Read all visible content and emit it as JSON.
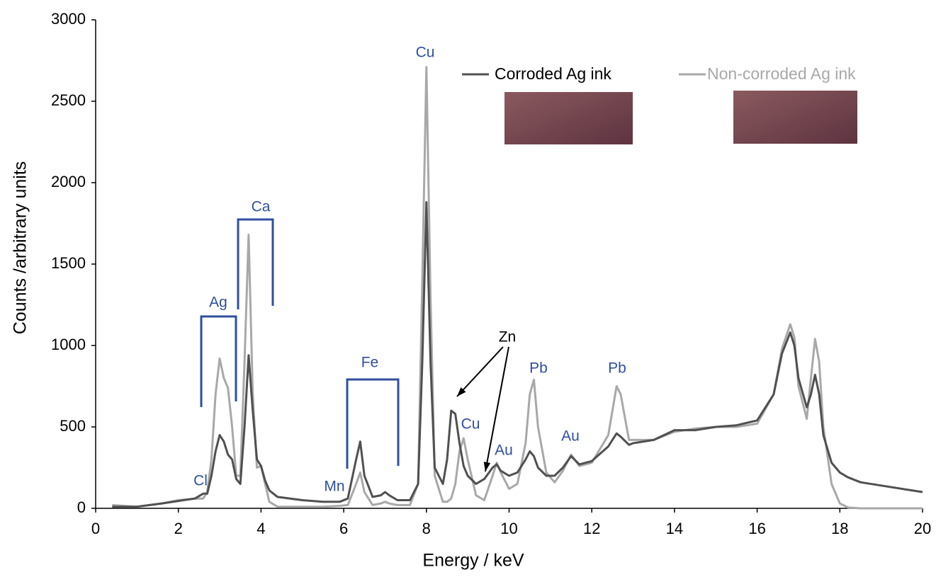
{
  "chart_data": {
    "type": "line",
    "x_label": "Energy / keV",
    "y_label": "Counts /arbitrary units",
    "xlim": [
      0,
      20
    ],
    "xticks": [
      0,
      2,
      4,
      6,
      8,
      10,
      12,
      14,
      16,
      18,
      20
    ],
    "ylim": [
      0,
      3000
    ],
    "yticks": [
      0,
      500,
      1000,
      1500,
      2000,
      2500,
      3000
    ],
    "x": [
      0.4,
      1.0,
      1.6,
      2.0,
      2.4,
      2.6,
      2.7,
      2.8,
      2.9,
      3.0,
      3.1,
      3.2,
      3.3,
      3.4,
      3.5,
      3.6,
      3.7,
      3.8,
      3.9,
      4.0,
      4.1,
      4.2,
      4.4,
      5.0,
      5.5,
      5.9,
      6.1,
      6.3,
      6.4,
      6.5,
      6.7,
      6.9,
      7.0,
      7.1,
      7.3,
      7.6,
      7.8,
      7.9,
      8.0,
      8.1,
      8.2,
      8.4,
      8.5,
      8.6,
      8.7,
      8.8,
      8.9,
      9.0,
      9.2,
      9.4,
      9.6,
      9.7,
      9.8,
      10.0,
      10.2,
      10.4,
      10.5,
      10.6,
      10.7,
      10.9,
      11.1,
      11.3,
      11.5,
      11.7,
      12.0,
      12.4,
      12.6,
      12.7,
      12.9,
      13.0,
      13.5,
      14.0,
      14.5,
      15.0,
      15.5,
      16.0,
      16.4,
      16.6,
      16.8,
      16.9,
      17.0,
      17.2,
      17.3,
      17.4,
      17.5,
      17.6,
      17.8,
      18.0,
      18.2,
      18.5,
      19.0,
      20.0
    ],
    "series": [
      {
        "name": "Corroded Ag ink",
        "color": "#505050",
        "values": [
          10,
          10,
          30,
          45,
          60,
          90,
          90,
          200,
          350,
          450,
          410,
          330,
          300,
          180,
          150,
          500,
          940,
          600,
          300,
          260,
          170,
          110,
          70,
          50,
          40,
          40,
          60,
          300,
          410,
          200,
          70,
          80,
          100,
          80,
          50,
          50,
          150,
          900,
          1880,
          900,
          250,
          150,
          300,
          600,
          580,
          400,
          260,
          200,
          150,
          180,
          250,
          270,
          230,
          200,
          220,
          300,
          350,
          320,
          250,
          200,
          200,
          250,
          320,
          270,
          290,
          380,
          460,
          440,
          390,
          400,
          420,
          480,
          480,
          500,
          510,
          540,
          700,
          950,
          1080,
          1000,
          800,
          620,
          700,
          820,
          700,
          450,
          280,
          220,
          190,
          160,
          140,
          100
        ]
      },
      {
        "name": "Non-corroded Ag ink",
        "color": "#a8a8a8",
        "values": [
          20,
          10,
          30,
          50,
          60,
          60,
          100,
          300,
          700,
          920,
          800,
          740,
          500,
          200,
          200,
          900,
          1680,
          700,
          250,
          260,
          150,
          40,
          10,
          10,
          10,
          15,
          20,
          150,
          220,
          100,
          20,
          30,
          40,
          30,
          20,
          20,
          150,
          1400,
          2710,
          1300,
          200,
          40,
          40,
          60,
          150,
          350,
          430,
          300,
          80,
          50,
          200,
          280,
          220,
          120,
          150,
          400,
          700,
          790,
          500,
          220,
          160,
          230,
          330,
          260,
          280,
          450,
          750,
          700,
          420,
          420,
          420,
          470,
          490,
          500,
          500,
          520,
          700,
          980,
          1130,
          1050,
          750,
          550,
          800,
          1040,
          900,
          500,
          150,
          30,
          5,
          0,
          0,
          0
        ]
      }
    ],
    "annotations": [
      "Cl",
      "Ag",
      "Ca",
      "Mn",
      "Fe",
      "Cu",
      "Cu",
      "Au",
      "Pb",
      "Au",
      "Pb",
      "Zn"
    ]
  }
}
